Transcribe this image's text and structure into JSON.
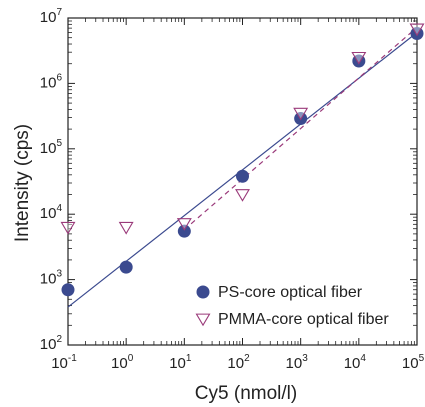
{
  "chart_data": {
    "type": "scatter",
    "xlabel": "Cy5 (nmol/l)",
    "ylabel": "Intensity (cps)",
    "xscale": "log",
    "yscale": "log",
    "xlim": [
      0.1,
      100000
    ],
    "ylim": [
      100,
      10000000
    ],
    "x_ticks": [
      {
        "base": "10",
        "exp": "-1"
      },
      {
        "base": "10",
        "exp": "0"
      },
      {
        "base": "10",
        "exp": "1"
      },
      {
        "base": "10",
        "exp": "2"
      },
      {
        "base": "10",
        "exp": "3"
      },
      {
        "base": "10",
        "exp": "4"
      },
      {
        "base": "10",
        "exp": "5"
      }
    ],
    "y_ticks": [
      {
        "base": "10",
        "exp": "2"
      },
      {
        "base": "10",
        "exp": "3"
      },
      {
        "base": "10",
        "exp": "4"
      },
      {
        "base": "10",
        "exp": "5"
      },
      {
        "base": "10",
        "exp": "6"
      },
      {
        "base": "10",
        "exp": "7"
      }
    ],
    "grid": false,
    "legend_position": "bottom-right",
    "series": [
      {
        "name": "PS-core optical fiber",
        "marker": "filled-circle",
        "color": "#3b4a8f",
        "x": [
          0.1,
          1,
          10,
          100,
          1000,
          10000,
          100000
        ],
        "y": [
          700,
          1550,
          5500,
          38000,
          290000,
          2200000,
          5800000
        ],
        "fit": {
          "style": "solid",
          "x": [
            0.1,
            100000
          ],
          "y": [
            380,
            6000000
          ]
        }
      },
      {
        "name": "PMMA-core optical fiber",
        "marker": "open-triangle-down",
        "color": "#9a3a7a",
        "x": [
          0.1,
          1,
          10,
          100,
          1000,
          10000,
          100000
        ],
        "y": [
          6300,
          6300,
          7200,
          20000,
          350000,
          2500000,
          6800000
        ],
        "fit": {
          "style": "dashed",
          "x": [
            10,
            100000
          ],
          "y": [
            5800,
            7200000
          ]
        }
      }
    ]
  }
}
